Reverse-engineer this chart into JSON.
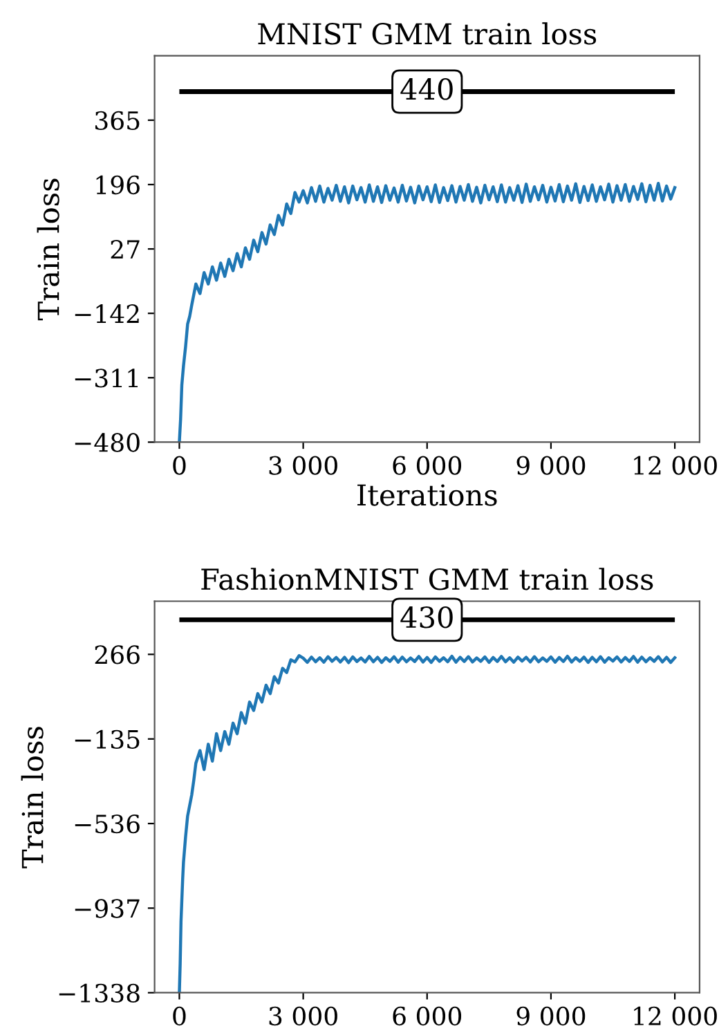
{
  "chart_data": [
    {
      "type": "line",
      "title": "MNIST GMM train loss",
      "xlabel": "Iterations",
      "ylabel": "Train loss",
      "xlim": [
        -600,
        12600
      ],
      "ylim": [
        -480,
        534
      ],
      "xticks": [
        0,
        {
          "value": 3000,
          "label": "3 000"
        },
        {
          "value": 6000,
          "label": "6 000"
        },
        {
          "value": 9000,
          "label": "9 000"
        },
        {
          "value": 12000,
          "label": "12 000"
        }
      ],
      "yticks": [
        {
          "value": -480,
          "label": "−480"
        },
        {
          "value": -311,
          "label": "−311"
        },
        {
          "value": -142,
          "label": "−142"
        },
        27,
        196,
        365
      ],
      "grid": false,
      "legend": false,
      "ref_lines": [
        {
          "axis": "y",
          "value": 440,
          "label": "440",
          "color": "#000000"
        }
      ],
      "series": [
        {
          "color": "#1f77b4",
          "x": [
            0,
            30,
            60,
            100,
            150,
            200,
            250,
            300,
            400,
            500,
            600,
            700,
            800,
            900,
            1000,
            1100,
            1200,
            1300,
            1400,
            1500,
            1600,
            1700,
            1800,
            1900,
            2000,
            2100,
            2200,
            2300,
            2400,
            2500,
            2600,
            2700,
            2800,
            2900,
            3000,
            3100,
            3200,
            3300,
            3400,
            3500,
            3600,
            3700,
            3800,
            3900,
            4000,
            4100,
            4200,
            4300,
            4400,
            4500,
            4600,
            4700,
            4800,
            4900,
            5000,
            5100,
            5200,
            5300,
            5400,
            5500,
            5600,
            5700,
            5800,
            5900,
            6000,
            6100,
            6200,
            6300,
            6400,
            6500,
            6600,
            6700,
            6800,
            6900,
            7000,
            7100,
            7200,
            7300,
            7400,
            7500,
            7600,
            7700,
            7800,
            7900,
            8000,
            8100,
            8200,
            8300,
            8400,
            8500,
            8600,
            8700,
            8800,
            8900,
            9000,
            9100,
            9200,
            9300,
            9400,
            9500,
            9600,
            9700,
            9800,
            9900,
            10000,
            10100,
            10200,
            10300,
            10400,
            10500,
            10600,
            10700,
            10800,
            10900,
            11000,
            11100,
            11200,
            11300,
            11400,
            11500,
            11600,
            11700,
            11800,
            11900,
            12000
          ],
          "values": [
            -480,
            -420,
            -330,
            -280,
            -230,
            -170,
            -150,
            -120,
            -65,
            -90,
            -35,
            -65,
            -20,
            -55,
            -10,
            -45,
            0,
            -30,
            15,
            -20,
            30,
            0,
            50,
            20,
            70,
            40,
            90,
            65,
            115,
            90,
            145,
            120,
            175,
            150,
            180,
            148,
            188,
            152,
            192,
            150,
            186,
            155,
            194,
            152,
            190,
            148,
            192,
            156,
            188,
            150,
            195,
            152,
            190,
            149,
            193,
            155,
            187,
            150,
            194,
            153,
            189,
            148,
            192,
            156,
            190,
            151,
            195,
            149,
            188,
            154,
            193,
            150,
            191,
            155,
            196,
            152,
            189,
            148,
            194,
            156,
            190,
            151,
            195,
            150,
            188,
            155,
            193,
            149,
            197,
            152,
            190,
            156,
            194,
            150,
            189,
            153,
            196,
            151,
            192,
            155,
            198,
            149,
            191,
            154,
            195,
            152,
            190,
            156,
            197,
            150,
            193,
            155,
            196,
            152,
            191,
            157,
            198,
            151,
            194,
            155,
            199,
            153,
            192,
            158,
            188
          ]
        }
      ]
    },
    {
      "type": "line",
      "title": "FashionMNIST GMM train loss",
      "ylabel": "Train loss",
      "xlim": [
        -600,
        12600
      ],
      "ylim": [
        -1338,
        518
      ],
      "xticks": [
        0,
        {
          "value": 3000,
          "label": "3 000"
        },
        {
          "value": 6000,
          "label": "6 000"
        },
        {
          "value": 9000,
          "label": "9 000"
        },
        {
          "value": 12000,
          "label": "12 000"
        }
      ],
      "yticks": [
        {
          "value": -1338,
          "label": "−1338"
        },
        {
          "value": -937,
          "label": "−937"
        },
        {
          "value": -536,
          "label": "−536"
        },
        {
          "value": -135,
          "label": "−135"
        },
        266
      ],
      "grid": false,
      "legend": false,
      "ref_lines": [
        {
          "axis": "y",
          "value": 430,
          "label": "430",
          "color": "#000000"
        }
      ],
      "series": [
        {
          "color": "#1f77b4",
          "x": [
            0,
            20,
            40,
            60,
            80,
            100,
            150,
            200,
            250,
            300,
            350,
            400,
            500,
            600,
            700,
            800,
            900,
            1000,
            1100,
            1200,
            1300,
            1400,
            1500,
            1600,
            1700,
            1800,
            1900,
            2000,
            2100,
            2200,
            2300,
            2400,
            2500,
            2600,
            2700,
            2800,
            2900,
            3000,
            3100,
            3200,
            3300,
            3400,
            3500,
            3600,
            3700,
            3800,
            3900,
            4000,
            4100,
            4200,
            4300,
            4400,
            4500,
            4600,
            4700,
            4800,
            4900,
            5000,
            5100,
            5200,
            5300,
            5400,
            5500,
            5600,
            5700,
            5800,
            5900,
            6000,
            6100,
            6200,
            6300,
            6400,
            6500,
            6600,
            6700,
            6800,
            6900,
            7000,
            7100,
            7200,
            7300,
            7400,
            7500,
            7600,
            7700,
            7800,
            7900,
            8000,
            8100,
            8200,
            8300,
            8400,
            8500,
            8600,
            8700,
            8800,
            8900,
            9000,
            9100,
            9200,
            9300,
            9400,
            9500,
            9600,
            9700,
            9800,
            9900,
            10000,
            10100,
            10200,
            10300,
            10400,
            10500,
            10600,
            10700,
            10800,
            10900,
            11000,
            11100,
            11200,
            11300,
            11400,
            11500,
            11600,
            11700,
            11800,
            11900,
            12000
          ],
          "values": [
            -1338,
            -1200,
            -1000,
            -900,
            -800,
            -720,
            -600,
            -500,
            -450,
            -400,
            -330,
            -250,
            -190,
            -280,
            -160,
            -240,
            -110,
            -190,
            -100,
            -160,
            -60,
            -110,
            -10,
            -60,
            40,
            0,
            80,
            40,
            120,
            80,
            160,
            130,
            200,
            180,
            240,
            230,
            260,
            248,
            228,
            253,
            231,
            250,
            229,
            255,
            233,
            251,
            230,
            252,
            227,
            254,
            232,
            249,
            230,
            256,
            231,
            252,
            228,
            250,
            233,
            255,
            229,
            253,
            231,
            249,
            232,
            256,
            230,
            251,
            228,
            254,
            233,
            250,
            231,
            257,
            229,
            252,
            232,
            255,
            230,
            249,
            233,
            254,
            228,
            251,
            232,
            256,
            231,
            250,
            229,
            253,
            234,
            252,
            230,
            255,
            231,
            249,
            233,
            254,
            229,
            251,
            232,
            257,
            230,
            250,
            233,
            253,
            228,
            252,
            231,
            255,
            229,
            250,
            234,
            254,
            230,
            251,
            232,
            256,
            229,
            253,
            231,
            250,
            233,
            255,
            230,
            252,
            228,
            250
          ]
        }
      ]
    }
  ]
}
